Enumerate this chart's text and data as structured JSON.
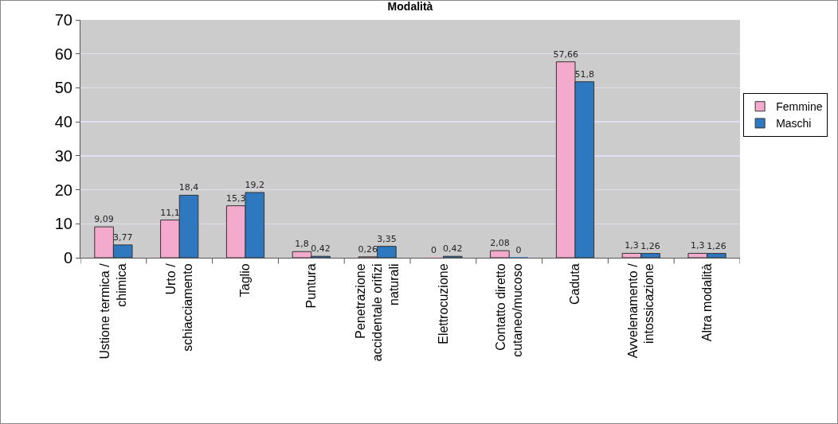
{
  "chart_data": {
    "type": "bar",
    "title": "Modalità",
    "categories": [
      "Ustione termica / chimica",
      "Urto / schiacciamento",
      "Taglio",
      "Puntura",
      "Penetrazione accidentale orifizi naturali",
      "Elettrocuzione",
      "Contatto diretto cutaneo/mucoso",
      "Caduta",
      "Avvelenamento / intossicazione",
      "Altra modalità"
    ],
    "series": [
      {
        "name": "Femmine",
        "color": "#f4aacc",
        "values": [
          9.09,
          11.1,
          15.3,
          1.8,
          0.26,
          0,
          2.08,
          57.66,
          1.3,
          1.3
        ],
        "value_labels": [
          "9,09",
          "11,1",
          "15,3",
          "1,8",
          "0,26",
          "0",
          "2,08",
          "57,66",
          "1,3",
          "1,3"
        ]
      },
      {
        "name": "Maschi",
        "color": "#2e78c0",
        "values": [
          3.77,
          18.4,
          19.2,
          0.42,
          3.35,
          0.42,
          0,
          51.8,
          1.26,
          1.26
        ],
        "value_labels": [
          "3,77",
          "18,4",
          "19,2",
          "0,42",
          "3,35",
          "0,42",
          "0",
          "51,8",
          "1,26",
          "1,26"
        ]
      }
    ],
    "ylim": [
      0,
      70
    ],
    "yticks": [
      0,
      10,
      20,
      30,
      40,
      50,
      60,
      70
    ],
    "grid": "y",
    "legend": "right"
  }
}
